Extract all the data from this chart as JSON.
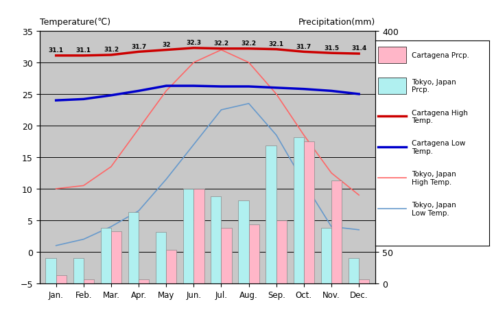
{
  "months": [
    "Jan.",
    "Feb.",
    "Mar.",
    "Apr.",
    "May",
    "Jun.",
    "Jul.",
    "Aug.",
    "Sep.",
    "Oct.",
    "Nov.",
    "Dec."
  ],
  "cartagena_high": [
    31.1,
    31.1,
    31.2,
    31.7,
    32.0,
    32.3,
    32.2,
    32.2,
    32.1,
    31.7,
    31.5,
    31.4
  ],
  "cartagena_low": [
    24.0,
    24.2,
    24.8,
    25.5,
    26.3,
    26.3,
    26.2,
    26.2,
    26.0,
    25.8,
    25.5,
    25.0
  ],
  "tokyo_high": [
    10.0,
    10.5,
    13.5,
    19.5,
    25.5,
    30.0,
    32.0,
    30.0,
    25.0,
    18.5,
    12.5,
    9.0
  ],
  "tokyo_low": [
    1.0,
    2.0,
    4.0,
    6.5,
    11.5,
    17.0,
    22.5,
    23.5,
    18.5,
    11.0,
    4.0,
    3.5
  ],
  "cartagena_prcp_mm": [
    13,
    6,
    83,
    6,
    53,
    150,
    88,
    94,
    100,
    225,
    163,
    6
  ],
  "tokyo_prcp_mm": [
    40,
    40,
    88,
    113,
    81,
    150,
    138,
    131,
    219,
    231,
    88,
    40
  ],
  "title_left": "Temperature(℃)",
  "title_right": "Precipitation(mm)",
  "ylim_left": [
    -5,
    35
  ],
  "ylim_right": [
    0,
    400
  ],
  "bg_color": "#c8c8c8",
  "cartagena_high_color": "#cc0000",
  "cartagena_low_color": "#0000cc",
  "tokyo_high_color": "#ff6666",
  "tokyo_low_color": "#6699cc",
  "cartagena_prcp_color": "#ffb6c8",
  "tokyo_prcp_color": "#b0f0f0"
}
